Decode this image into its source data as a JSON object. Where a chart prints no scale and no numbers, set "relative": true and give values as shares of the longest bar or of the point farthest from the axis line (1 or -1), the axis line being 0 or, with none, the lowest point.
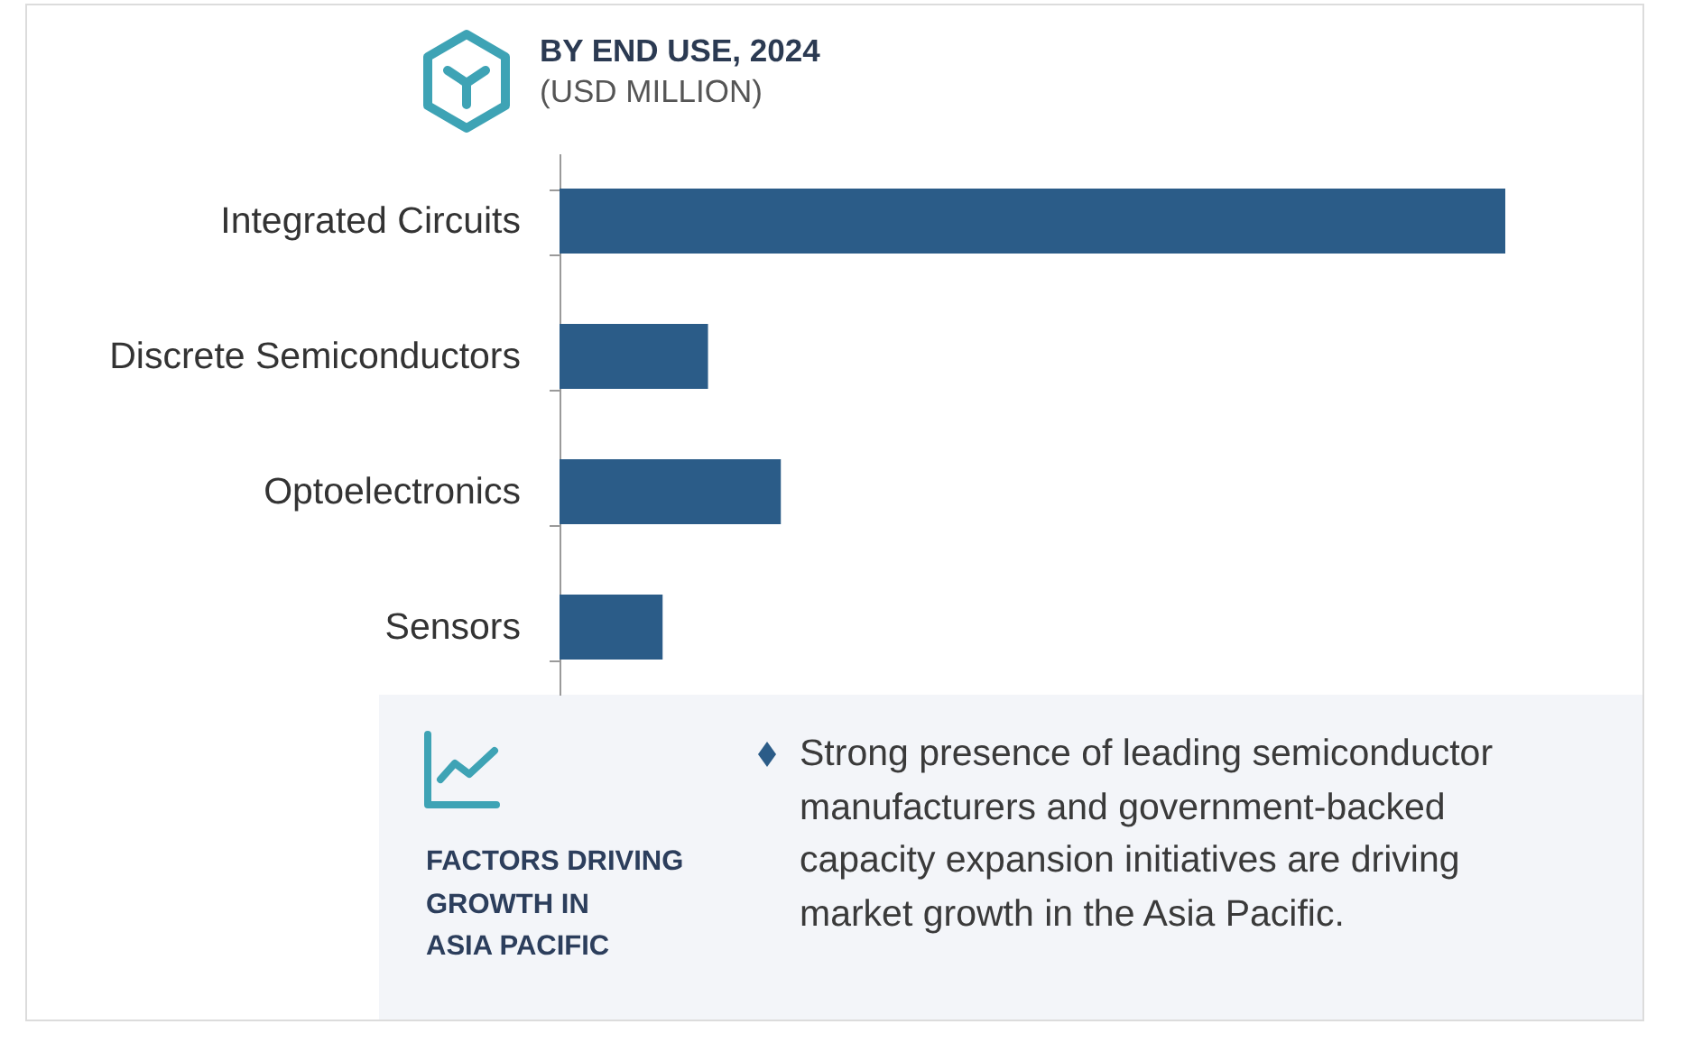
{
  "chart_data": {
    "type": "bar",
    "orientation": "horizontal",
    "relative": true,
    "title": "BY END USE, 2024",
    "subtitle": "(USD MILLION)",
    "categories": [
      "Integrated Circuits",
      "Discrete Semiconductors",
      "Optoelectronics",
      "Sensors"
    ],
    "values": [
      1,
      0.157,
      0.234,
      0.109
    ],
    "color": "#2b5c88",
    "annotations": [
      "FACTORS DRIVING\nGROWTH IN\nASIA PACIFIC",
      "Strong presence of leading semiconductor manufacturers and government-backed capacity expansion initiatives are driving market growth in the Asia Pacific."
    ]
  }
}
